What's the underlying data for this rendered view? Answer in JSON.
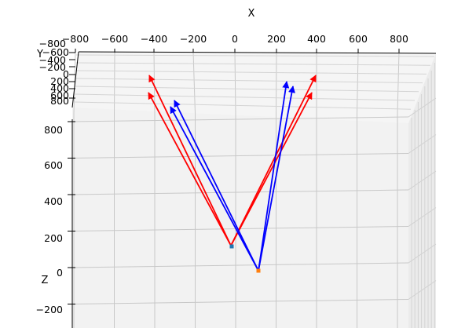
{
  "chart_data": {
    "type": "3d-quiver",
    "title": "",
    "xlabel": "X",
    "ylabel": "Y",
    "zlabel": "Z",
    "x_ticks": [
      "−800",
      "−600",
      "−400",
      "−200",
      "0",
      "200",
      "400",
      "600",
      "800"
    ],
    "y_ticks": [
      "−800",
      "−600",
      "−400",
      "−200",
      "0",
      "200",
      "400",
      "600",
      "800"
    ],
    "z_ticks": [
      "−200",
      "0",
      "200",
      "400",
      "600",
      "800"
    ],
    "origins": [
      {
        "name": "",
        "x": -20,
        "y": 0,
        "z": 110,
        "color": "#1f77b4"
      },
      {
        "name": "",
        "x": 120,
        "y": 0,
        "z": -20,
        "color": "#ff7f0e"
      }
    ],
    "series": [
      {
        "color": "#ff0000",
        "vectors": [
          {
            "from": [
              -20,
              110
            ],
            "to": [
              -460,
              940
            ]
          },
          {
            "from": [
              -20,
              110
            ],
            "to": [
              -460,
              820
            ]
          },
          {
            "from": [
              -20,
              110
            ],
            "to": [
              420,
              940
            ]
          },
          {
            "from": [
              -20,
              110
            ],
            "to": [
              400,
              820
            ]
          }
        ]
      },
      {
        "color": "#0000ff",
        "vectors": [
          {
            "from": [
              120,
              -20
            ],
            "to": [
              -310,
              840
            ]
          },
          {
            "from": [
              120,
              -20
            ],
            "to": [
              -340,
              790
            ]
          },
          {
            "from": [
              120,
              -20
            ],
            "to": [
              260,
              890
            ]
          },
          {
            "from": [
              120,
              -20
            ],
            "to": [
              290,
              860
            ]
          }
        ]
      }
    ]
  }
}
